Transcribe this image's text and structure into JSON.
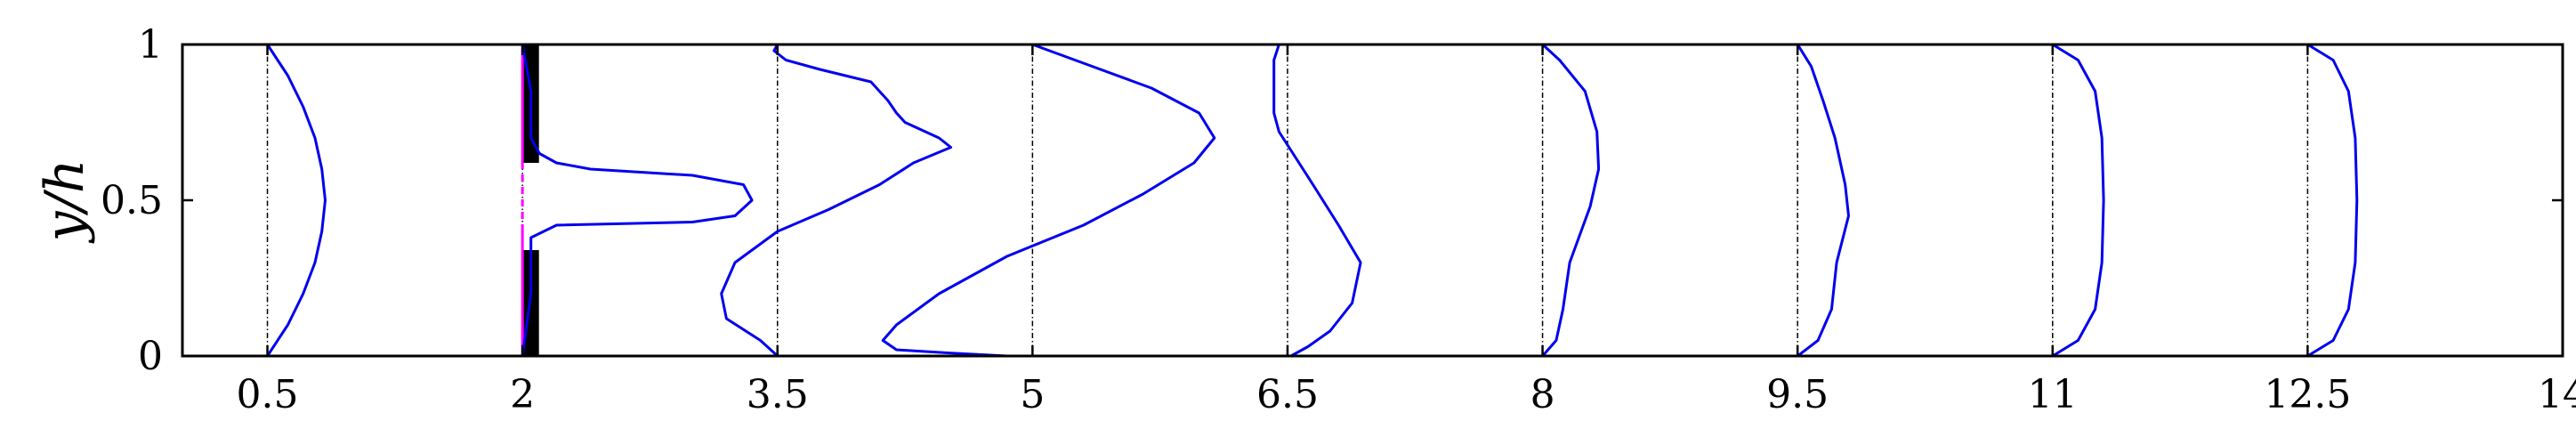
{
  "chart_data": {
    "type": "line",
    "xlabel": "",
    "ylabel": "y/h",
    "xlim": [
      0,
      14
    ],
    "ylim": [
      0,
      1
    ],
    "x_ticks": [
      0.5,
      2,
      3.5,
      5,
      6.5,
      8,
      9.5,
      11,
      12.5,
      14
    ],
    "x_tick_labels": [
      "0.5",
      "2",
      "3.5",
      "5",
      "6.5",
      "8",
      "9.5",
      "11",
      "12.5",
      "14"
    ],
    "y_ticks": [
      0,
      0.5,
      1
    ],
    "y_tick_labels": [
      "0",
      "0.5",
      "1"
    ],
    "grid": false,
    "legend": "none",
    "colors": {
      "profile": "#0000ee",
      "baseline": "#000000",
      "orifice": "#ff00ff",
      "baffle": "#000000"
    },
    "orifice": {
      "x": 2,
      "y_range": [
        0.4,
        0.62
      ]
    },
    "baffles": [
      {
        "x": 2.05,
        "y_range": [
          0.0,
          0.34
        ]
      },
      {
        "x": 2.05,
        "y_range": [
          0.62,
          1.0
        ]
      }
    ],
    "series": [
      {
        "station": 0.5,
        "points": [
          [
            0.5,
            0
          ],
          [
            0.62,
            0.1
          ],
          [
            0.71,
            0.2
          ],
          [
            0.78,
            0.3
          ],
          [
            0.82,
            0.4
          ],
          [
            0.84,
            0.5
          ],
          [
            0.82,
            0.6
          ],
          [
            0.78,
            0.7
          ],
          [
            0.71,
            0.8
          ],
          [
            0.62,
            0.9
          ],
          [
            0.5,
            1.0
          ]
        ]
      },
      {
        "station": 2,
        "points": [
          [
            2.0,
            0
          ],
          [
            2.05,
            0.2
          ],
          [
            2.05,
            0.38
          ],
          [
            2.2,
            0.42
          ],
          [
            3.0,
            0.43
          ],
          [
            3.25,
            0.45
          ],
          [
            3.35,
            0.5
          ],
          [
            3.3,
            0.55
          ],
          [
            3.0,
            0.58
          ],
          [
            2.4,
            0.6
          ],
          [
            2.2,
            0.62
          ],
          [
            2.1,
            0.65
          ],
          [
            2.05,
            0.7
          ],
          [
            2.05,
            0.85
          ],
          [
            2.0,
            1.0
          ]
        ]
      },
      {
        "station": 3.5,
        "points": [
          [
            3.5,
            0
          ],
          [
            3.4,
            0.05
          ],
          [
            3.2,
            0.12
          ],
          [
            3.17,
            0.2
          ],
          [
            3.25,
            0.3
          ],
          [
            3.5,
            0.4
          ],
          [
            3.8,
            0.47
          ],
          [
            4.1,
            0.55
          ],
          [
            4.3,
            0.62
          ],
          [
            4.52,
            0.67
          ],
          [
            4.45,
            0.7
          ],
          [
            4.25,
            0.75
          ],
          [
            4.2,
            0.78
          ],
          [
            4.15,
            0.82
          ],
          [
            4.05,
            0.88
          ],
          [
            3.75,
            0.92
          ],
          [
            3.55,
            0.95
          ],
          [
            3.48,
            0.98
          ],
          [
            3.5,
            1.0
          ]
        ]
      },
      {
        "station": 5,
        "points": [
          [
            4.85,
            0
          ],
          [
            4.5,
            0.01
          ],
          [
            4.2,
            0.02
          ],
          [
            4.12,
            0.05
          ],
          [
            4.2,
            0.1
          ],
          [
            4.45,
            0.2
          ],
          [
            4.85,
            0.32
          ],
          [
            5.3,
            0.42
          ],
          [
            5.65,
            0.52
          ],
          [
            5.95,
            0.62
          ],
          [
            6.07,
            0.7
          ],
          [
            5.98,
            0.78
          ],
          [
            5.7,
            0.86
          ],
          [
            5.3,
            0.94
          ],
          [
            5.0,
            1.0
          ]
        ]
      },
      {
        "station": 6.5,
        "points": [
          [
            6.52,
            0
          ],
          [
            6.62,
            0.03
          ],
          [
            6.75,
            0.08
          ],
          [
            6.88,
            0.17
          ],
          [
            6.93,
            0.3
          ],
          [
            6.8,
            0.42
          ],
          [
            6.65,
            0.55
          ],
          [
            6.45,
            0.72
          ],
          [
            6.42,
            0.78
          ],
          [
            6.42,
            0.95
          ],
          [
            6.45,
            1.0
          ]
        ]
      },
      {
        "station": 8,
        "points": [
          [
            8.0,
            0
          ],
          [
            8.08,
            0.05
          ],
          [
            8.12,
            0.15
          ],
          [
            8.16,
            0.3
          ],
          [
            8.28,
            0.48
          ],
          [
            8.33,
            0.6
          ],
          [
            8.32,
            0.72
          ],
          [
            8.25,
            0.85
          ],
          [
            8.1,
            0.95
          ],
          [
            8.0,
            1.0
          ]
        ]
      },
      {
        "station": 9.5,
        "points": [
          [
            9.5,
            0
          ],
          [
            9.62,
            0.05
          ],
          [
            9.7,
            0.15
          ],
          [
            9.73,
            0.3
          ],
          [
            9.8,
            0.45
          ],
          [
            9.78,
            0.55
          ],
          [
            9.72,
            0.7
          ],
          [
            9.65,
            0.82
          ],
          [
            9.58,
            0.93
          ],
          [
            9.5,
            1.0
          ]
        ]
      },
      {
        "station": 11,
        "points": [
          [
            11.0,
            0
          ],
          [
            11.15,
            0.05
          ],
          [
            11.25,
            0.15
          ],
          [
            11.29,
            0.3
          ],
          [
            11.3,
            0.5
          ],
          [
            11.29,
            0.7
          ],
          [
            11.25,
            0.85
          ],
          [
            11.15,
            0.95
          ],
          [
            11.0,
            1.0
          ]
        ]
      },
      {
        "station": 12.5,
        "points": [
          [
            12.5,
            0
          ],
          [
            12.65,
            0.05
          ],
          [
            12.74,
            0.15
          ],
          [
            12.78,
            0.3
          ],
          [
            12.79,
            0.5
          ],
          [
            12.78,
            0.7
          ],
          [
            12.74,
            0.85
          ],
          [
            12.65,
            0.95
          ],
          [
            12.5,
            1.0
          ]
        ]
      }
    ]
  }
}
